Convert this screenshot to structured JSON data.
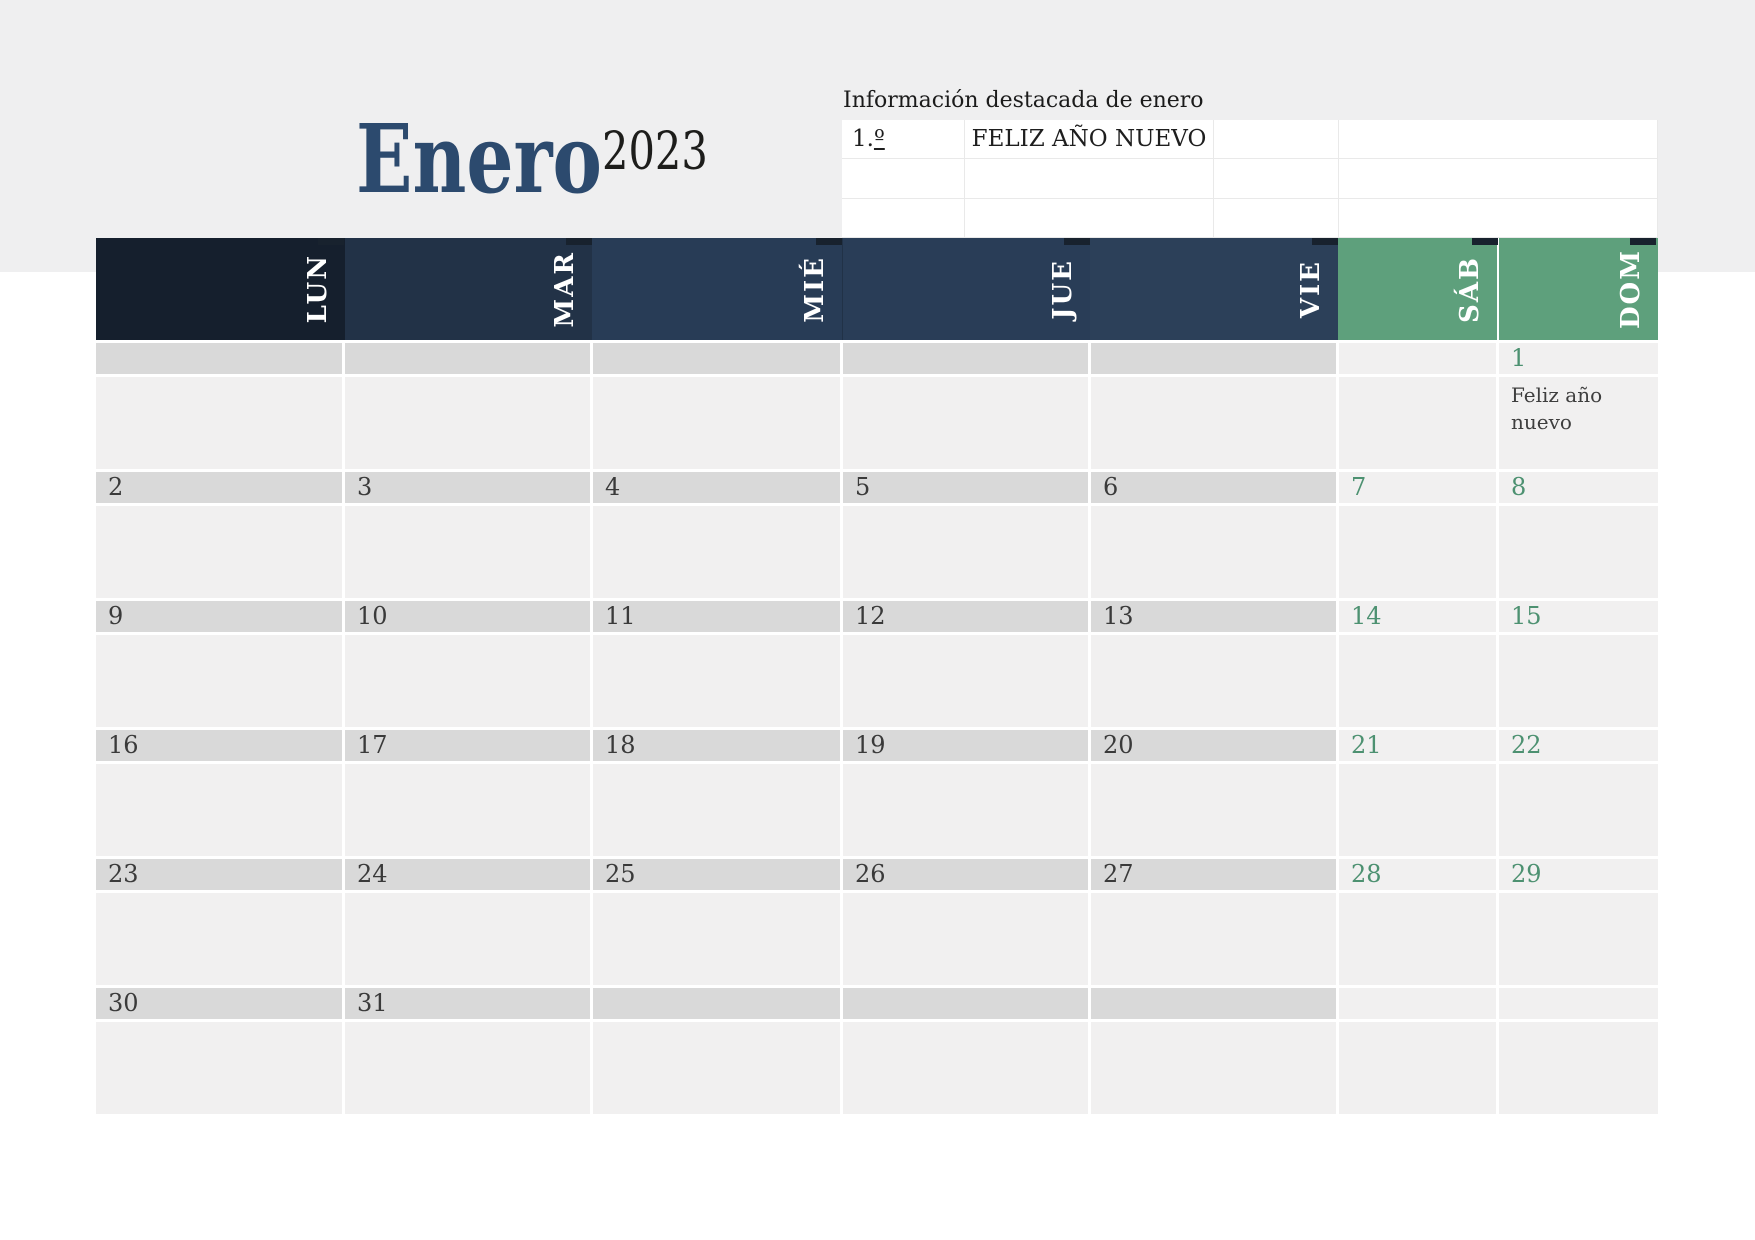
{
  "header": {
    "month": "Enero",
    "year": "2023"
  },
  "info_panel": {
    "title": "Información destacada de enero",
    "first_cell": {
      "prefix": "1.",
      "ordinal": "º"
    },
    "rows": [
      [
        "1.º",
        "FELIZ AÑO NUEVO",
        "",
        ""
      ],
      [
        "",
        "",
        "",
        ""
      ],
      [
        "",
        "",
        "",
        ""
      ]
    ]
  },
  "calendar": {
    "day_headers": [
      {
        "label": "LUN",
        "bg": "#151f2d"
      },
      {
        "label": "MAR",
        "bg": "#223247"
      },
      {
        "label": "MIÉ",
        "bg": "#283c56"
      },
      {
        "label": "JUE",
        "bg": "#293d57"
      },
      {
        "label": "VIE",
        "bg": "#2c4059"
      },
      {
        "label": "SÁB",
        "bg": "#5ea07c"
      },
      {
        "label": "DOM",
        "bg": "#5ea07c"
      }
    ],
    "weeks": [
      {
        "days": [
          {
            "num": ""
          },
          {
            "num": ""
          },
          {
            "num": ""
          },
          {
            "num": ""
          },
          {
            "num": ""
          },
          {
            "num": ""
          },
          {
            "num": "1",
            "note": "Feliz año nuevo"
          }
        ]
      },
      {
        "days": [
          {
            "num": "2"
          },
          {
            "num": "3"
          },
          {
            "num": "4"
          },
          {
            "num": "5"
          },
          {
            "num": "6"
          },
          {
            "num": "7"
          },
          {
            "num": "8"
          }
        ]
      },
      {
        "days": [
          {
            "num": "9"
          },
          {
            "num": "10"
          },
          {
            "num": "11"
          },
          {
            "num": "12"
          },
          {
            "num": "13"
          },
          {
            "num": "14"
          },
          {
            "num": "15"
          }
        ]
      },
      {
        "days": [
          {
            "num": "16"
          },
          {
            "num": "17"
          },
          {
            "num": "18"
          },
          {
            "num": "19"
          },
          {
            "num": "20"
          },
          {
            "num": "21"
          },
          {
            "num": "22"
          }
        ]
      },
      {
        "days": [
          {
            "num": "23"
          },
          {
            "num": "24"
          },
          {
            "num": "25"
          },
          {
            "num": "26"
          },
          {
            "num": "27"
          },
          {
            "num": "28"
          },
          {
            "num": "29"
          }
        ]
      },
      {
        "days": [
          {
            "num": "30"
          },
          {
            "num": "31"
          },
          {
            "num": ""
          },
          {
            "num": ""
          },
          {
            "num": ""
          },
          {
            "num": ""
          },
          {
            "num": ""
          }
        ]
      }
    ]
  },
  "colors": {
    "top_band": "#efeff0",
    "cell_fill": "#f1f0f0",
    "date_strip": "#d9d9d9",
    "title_navy": "#2c4a6e",
    "year_black": "#1d1d1b",
    "weekday_number": "#3a3a3a",
    "weekend_number": "#4d9171",
    "note_text": "#3e3e3e",
    "header_text": "#ffffff",
    "weekend_green": "#5ea07c",
    "info_border": "#e9e9e9",
    "header_tab": "#18222e"
  }
}
